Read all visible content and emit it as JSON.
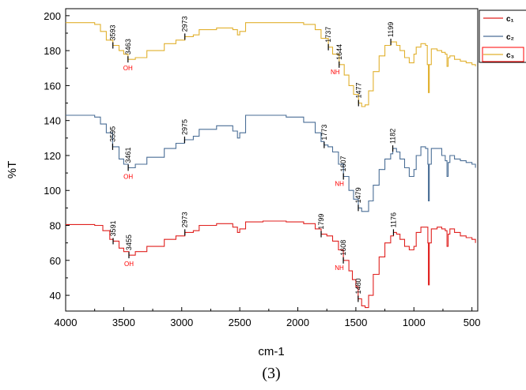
{
  "chart_data": {
    "type": "line",
    "xlabel": "cm-1",
    "ylabel": "%T",
    "caption": "(3)",
    "xlim": [
      4000,
      450
    ],
    "ylim": [
      31,
      204
    ],
    "x_axis_reversed": true,
    "x_ticks": [
      {
        "value": 4000,
        "label": "4000"
      },
      {
        "value": 3500,
        "label": "3500"
      },
      {
        "value": 3000,
        "label": "3000"
      },
      {
        "value": 2500,
        "label": "2500"
      },
      {
        "value": 2000,
        "label": "2000"
      },
      {
        "value": 1500,
        "label": "1500"
      },
      {
        "value": 1000,
        "label": "1000"
      },
      {
        "value": 500,
        "label": "500"
      }
    ],
    "y_ticks": [
      {
        "value": 40,
        "label": "40"
      },
      {
        "value": 60,
        "label": "60"
      },
      {
        "value": 80,
        "label": "80"
      },
      {
        "value": 100,
        "label": "100"
      },
      {
        "value": 120,
        "label": "120"
      },
      {
        "value": 140,
        "label": "140"
      },
      {
        "value": 160,
        "label": "160"
      },
      {
        "value": 180,
        "label": "180"
      },
      {
        "value": 200,
        "label": "200"
      }
    ],
    "grid": false,
    "legend_position": "top-right, partially cut off",
    "series": [
      {
        "name": "c₁",
        "color": "#e0211f",
        "points": [
          [
            4000,
            80.5
          ],
          [
            3850,
            80.5
          ],
          [
            3750,
            80
          ],
          [
            3680,
            77
          ],
          [
            3620,
            72
          ],
          [
            3591,
            71
          ],
          [
            3540,
            67
          ],
          [
            3500,
            65
          ],
          [
            3455,
            63
          ],
          [
            3400,
            65
          ],
          [
            3300,
            68
          ],
          [
            3150,
            72
          ],
          [
            3050,
            74
          ],
          [
            2973,
            76
          ],
          [
            2900,
            77
          ],
          [
            2850,
            80
          ],
          [
            2700,
            81
          ],
          [
            2560,
            79
          ],
          [
            2520,
            76
          ],
          [
            2500,
            78
          ],
          [
            2450,
            82
          ],
          [
            2300,
            82.5
          ],
          [
            2100,
            82
          ],
          [
            1950,
            81
          ],
          [
            1850,
            78
          ],
          [
            1799,
            75
          ],
          [
            1750,
            74
          ],
          [
            1700,
            71
          ],
          [
            1650,
            66
          ],
          [
            1608,
            60
          ],
          [
            1560,
            54
          ],
          [
            1530,
            49
          ],
          [
            1500,
            45
          ],
          [
            1480,
            38
          ],
          [
            1450,
            34
          ],
          [
            1420,
            33
          ],
          [
            1390,
            40
          ],
          [
            1350,
            52
          ],
          [
            1300,
            62
          ],
          [
            1250,
            70
          ],
          [
            1200,
            74
          ],
          [
            1176,
            76
          ],
          [
            1150,
            75
          ],
          [
            1120,
            72
          ],
          [
            1080,
            68
          ],
          [
            1040,
            66
          ],
          [
            1000,
            68
          ],
          [
            980,
            76
          ],
          [
            940,
            79
          ],
          [
            900,
            79
          ],
          [
            880,
            70
          ],
          [
            875,
            46
          ],
          [
            868,
            70
          ],
          [
            850,
            78
          ],
          [
            800,
            79
          ],
          [
            760,
            78
          ],
          [
            730,
            77
          ],
          [
            715,
            68
          ],
          [
            705,
            75
          ],
          [
            690,
            78
          ],
          [
            650,
            76
          ],
          [
            600,
            74
          ],
          [
            550,
            73
          ],
          [
            500,
            72
          ],
          [
            470,
            70
          ]
        ]
      },
      {
        "name": "c₂",
        "color": "#4a6e96",
        "points": [
          [
            4000,
            143
          ],
          [
            3850,
            143
          ],
          [
            3750,
            142
          ],
          [
            3700,
            138
          ],
          [
            3650,
            133
          ],
          [
            3595,
            125
          ],
          [
            3540,
            118
          ],
          [
            3500,
            115
          ],
          [
            3461,
            113
          ],
          [
            3400,
            115
          ],
          [
            3300,
            119
          ],
          [
            3150,
            124
          ],
          [
            3050,
            127
          ],
          [
            2975,
            129
          ],
          [
            2900,
            131
          ],
          [
            2850,
            135
          ],
          [
            2700,
            137
          ],
          [
            2560,
            134
          ],
          [
            2520,
            130
          ],
          [
            2500,
            133
          ],
          [
            2450,
            143
          ],
          [
            2300,
            143
          ],
          [
            2100,
            142
          ],
          [
            1950,
            139
          ],
          [
            1850,
            133
          ],
          [
            1800,
            128
          ],
          [
            1773,
            126
          ],
          [
            1740,
            125
          ],
          [
            1700,
            122
          ],
          [
            1650,
            115
          ],
          [
            1607,
            108
          ],
          [
            1560,
            100
          ],
          [
            1520,
            95
          ],
          [
            1479,
            90
          ],
          [
            1450,
            88
          ],
          [
            1420,
            88
          ],
          [
            1390,
            94
          ],
          [
            1350,
            103
          ],
          [
            1300,
            112
          ],
          [
            1250,
            118
          ],
          [
            1200,
            121
          ],
          [
            1182,
            124
          ],
          [
            1150,
            122
          ],
          [
            1120,
            118
          ],
          [
            1080,
            113
          ],
          [
            1040,
            108
          ],
          [
            1000,
            112
          ],
          [
            980,
            120
          ],
          [
            940,
            125
          ],
          [
            900,
            124
          ],
          [
            880,
            115
          ],
          [
            875,
            94
          ],
          [
            868,
            115
          ],
          [
            850,
            124
          ],
          [
            800,
            124
          ],
          [
            760,
            120
          ],
          [
            730,
            117
          ],
          [
            715,
            108
          ],
          [
            705,
            116
          ],
          [
            690,
            120
          ],
          [
            650,
            118
          ],
          [
            600,
            117
          ],
          [
            550,
            116
          ],
          [
            500,
            115
          ],
          [
            470,
            113
          ]
        ]
      },
      {
        "name": "c₃",
        "color": "#e1b02e",
        "points": [
          [
            4000,
            196
          ],
          [
            3850,
            196
          ],
          [
            3750,
            195
          ],
          [
            3700,
            191
          ],
          [
            3650,
            186
          ],
          [
            3593,
            183
          ],
          [
            3540,
            180
          ],
          [
            3500,
            178
          ],
          [
            3463,
            175
          ],
          [
            3400,
            176
          ],
          [
            3300,
            180
          ],
          [
            3150,
            184
          ],
          [
            3050,
            186
          ],
          [
            2973,
            188
          ],
          [
            2900,
            189
          ],
          [
            2850,
            192
          ],
          [
            2700,
            193
          ],
          [
            2560,
            192
          ],
          [
            2520,
            189
          ],
          [
            2500,
            191
          ],
          [
            2450,
            196
          ],
          [
            2300,
            196
          ],
          [
            2100,
            196
          ],
          [
            1950,
            195
          ],
          [
            1850,
            192
          ],
          [
            1800,
            187
          ],
          [
            1737,
            182
          ],
          [
            1700,
            178
          ],
          [
            1644,
            172
          ],
          [
            1600,
            166
          ],
          [
            1560,
            160
          ],
          [
            1520,
            155
          ],
          [
            1477,
            150
          ],
          [
            1450,
            148
          ],
          [
            1420,
            149
          ],
          [
            1390,
            157
          ],
          [
            1350,
            168
          ],
          [
            1300,
            177
          ],
          [
            1250,
            183
          ],
          [
            1199,
            185
          ],
          [
            1150,
            183
          ],
          [
            1120,
            180
          ],
          [
            1080,
            176
          ],
          [
            1040,
            173
          ],
          [
            1000,
            178
          ],
          [
            980,
            182
          ],
          [
            940,
            184
          ],
          [
            900,
            183
          ],
          [
            885,
            172
          ],
          [
            875,
            156
          ],
          [
            868,
            172
          ],
          [
            850,
            181
          ],
          [
            800,
            180
          ],
          [
            760,
            179
          ],
          [
            730,
            178
          ],
          [
            715,
            171
          ],
          [
            705,
            176
          ],
          [
            690,
            177
          ],
          [
            650,
            175
          ],
          [
            600,
            174
          ],
          [
            550,
            173
          ],
          [
            500,
            172
          ],
          [
            470,
            171
          ]
        ]
      }
    ],
    "annotations": [
      {
        "series": 0,
        "label": "3591",
        "x": 3591,
        "y": 71
      },
      {
        "series": 0,
        "label": "3455",
        "x": 3455,
        "y": 63,
        "group": "OH"
      },
      {
        "series": 0,
        "label": "2973",
        "x": 2973,
        "y": 76
      },
      {
        "series": 0,
        "label": "1799",
        "x": 1799,
        "y": 75
      },
      {
        "series": 0,
        "label": "1608",
        "x": 1608,
        "y": 60,
        "group": "NH"
      },
      {
        "series": 0,
        "label": "1480",
        "x": 1480,
        "y": 38
      },
      {
        "series": 0,
        "label": "1176",
        "x": 1176,
        "y": 76
      },
      {
        "series": 1,
        "label": "3595",
        "x": 3595,
        "y": 125
      },
      {
        "series": 1,
        "label": "3461",
        "x": 3461,
        "y": 113,
        "group": "OH"
      },
      {
        "series": 1,
        "label": "2975",
        "x": 2975,
        "y": 129
      },
      {
        "series": 1,
        "label": "1773",
        "x": 1773,
        "y": 126
      },
      {
        "series": 1,
        "label": "1607",
        "x": 1607,
        "y": 108,
        "group": "NH"
      },
      {
        "series": 1,
        "label": "1479",
        "x": 1479,
        "y": 90
      },
      {
        "series": 1,
        "label": "1182",
        "x": 1182,
        "y": 124
      },
      {
        "series": 2,
        "label": "3593",
        "x": 3593,
        "y": 183
      },
      {
        "series": 2,
        "label": "3463",
        "x": 3463,
        "y": 175,
        "group": "OH"
      },
      {
        "series": 2,
        "label": "2973",
        "x": 2973,
        "y": 188
      },
      {
        "series": 2,
        "label": "1737",
        "x": 1737,
        "y": 182
      },
      {
        "series": 2,
        "label": "1644",
        "x": 1644,
        "y": 172,
        "group": "NH"
      },
      {
        "series": 2,
        "label": "1477",
        "x": 1477,
        "y": 150
      },
      {
        "series": 2,
        "label": "1199",
        "x": 1199,
        "y": 185
      }
    ]
  }
}
